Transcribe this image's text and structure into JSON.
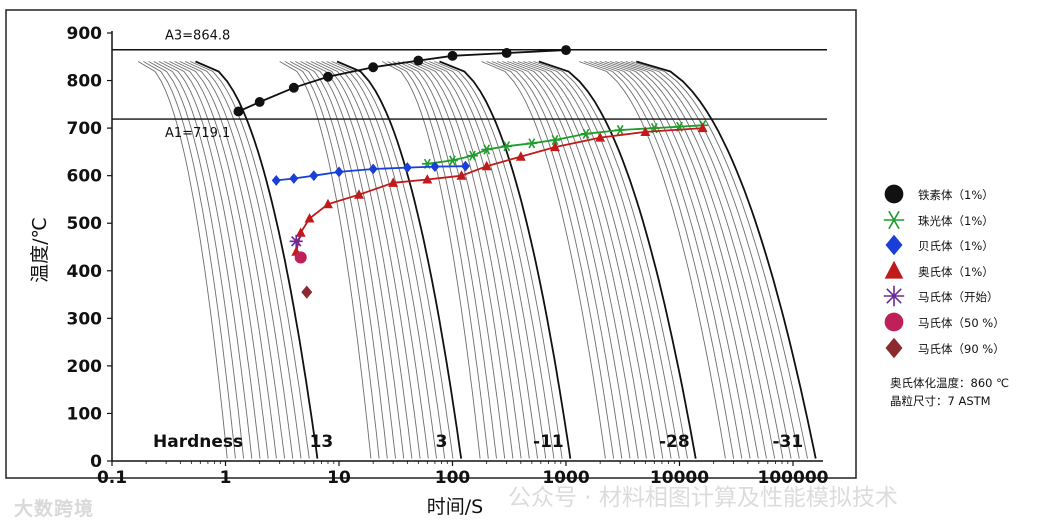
{
  "chart_data": {
    "type": "line",
    "chart_kind": "continuous-cooling-transformation diagram",
    "x_label": "时间/S",
    "y_label": "温度/℃",
    "x_scale": "log",
    "x_lim": [
      0.1,
      100000
    ],
    "y_lim": [
      0,
      900
    ],
    "x_ticks": [
      {
        "v": 0.1,
        "label": "0.1"
      },
      {
        "v": 1,
        "label": "1"
      },
      {
        "v": 10,
        "label": "10"
      },
      {
        "v": 100,
        "label": "100"
      },
      {
        "v": 1000,
        "label": "1000"
      },
      {
        "v": 10000,
        "label": "10000"
      },
      {
        "v": 100000,
        "label": "100000"
      }
    ],
    "y_ticks": [
      0,
      100,
      200,
      300,
      400,
      500,
      600,
      700,
      800,
      900
    ],
    "reference_lines": [
      {
        "name": "A3",
        "temperature": 864.8,
        "label": "A3=864.8"
      },
      {
        "name": "A1",
        "temperature": 719.1,
        "label": "A1=719.1"
      }
    ],
    "cooling_curve_groups": [
      {
        "t_start": 0.17,
        "t_end": 6.5,
        "count": 12
      },
      {
        "t_start": 3.0,
        "t_end": 120,
        "count": 12
      },
      {
        "t_start": 24,
        "t_end": 1100,
        "count": 12
      },
      {
        "t_start": 180,
        "t_end": 14000,
        "count": 12
      },
      {
        "t_start": 1300,
        "t_end": 160000,
        "count": 12
      }
    ],
    "series": [
      {
        "name": "铁素体（1%）",
        "marker": "circle",
        "color": "#111111",
        "points": [
          [
            1.3,
            735
          ],
          [
            2,
            755
          ],
          [
            4,
            785
          ],
          [
            8,
            808
          ],
          [
            20,
            828
          ],
          [
            50,
            842
          ],
          [
            100,
            852
          ],
          [
            300,
            858
          ],
          [
            1000,
            864
          ]
        ]
      },
      {
        "name": "珠光体（1%）",
        "marker": "asterisk",
        "color": "#1e9e2a",
        "points": [
          [
            60,
            625
          ],
          [
            100,
            632
          ],
          [
            150,
            642
          ],
          [
            200,
            655
          ],
          [
            300,
            662
          ],
          [
            500,
            668
          ],
          [
            800,
            675
          ],
          [
            1500,
            688
          ],
          [
            3000,
            696
          ],
          [
            6000,
            700
          ],
          [
            10000,
            703
          ],
          [
            16000,
            706
          ]
        ]
      },
      {
        "name": "贝氏体（1%）",
        "marker": "diamond",
        "color": "#1a3fd6",
        "points": [
          [
            2.8,
            590
          ],
          [
            4,
            594
          ],
          [
            6,
            600
          ],
          [
            10,
            608
          ],
          [
            20,
            614
          ],
          [
            40,
            617
          ],
          [
            70,
            619
          ],
          [
            130,
            620
          ]
        ]
      },
      {
        "name": "奥氏体（1%）",
        "marker": "triangle",
        "color": "#c01a1a",
        "points": [
          [
            4.2,
            440
          ],
          [
            4.6,
            480
          ],
          [
            5.5,
            510
          ],
          [
            8,
            540
          ],
          [
            15,
            560
          ],
          [
            30,
            585
          ],
          [
            60,
            592
          ],
          [
            120,
            600
          ],
          [
            200,
            620
          ],
          [
            400,
            640
          ],
          [
            800,
            660
          ],
          [
            2000,
            680
          ],
          [
            5000,
            692
          ],
          [
            16000,
            700
          ]
        ]
      },
      {
        "name": "马氏体（开始）",
        "marker": "star",
        "color": "#6a2a9a",
        "points": [
          [
            4.2,
            462
          ]
        ]
      },
      {
        "name": "马氏体（50 %）",
        "marker": "circle",
        "color": "#c0205a",
        "points": [
          [
            4.6,
            428
          ]
        ]
      },
      {
        "name": "马氏体（90 %）",
        "marker": "diamond",
        "color": "#8a2a30",
        "points": [
          [
            5.2,
            355
          ]
        ]
      }
    ],
    "hardness_label": "Hardness",
    "hardness_values": [
      {
        "t": 7,
        "label": "13"
      },
      {
        "t": 80,
        "label": "3"
      },
      {
        "t": 700,
        "label": "-11"
      },
      {
        "t": 9000,
        "label": "-28"
      },
      {
        "t": 90000,
        "label": "-31"
      }
    ]
  },
  "legend": [
    {
      "label": "铁素体（1%）",
      "marker": "circle",
      "color": "#111111"
    },
    {
      "label": "珠光体（1%）",
      "marker": "asterisk",
      "color": "#1e9e2a"
    },
    {
      "label": "贝氏体（1%）",
      "marker": "diamond",
      "color": "#1a3fd6"
    },
    {
      "label": "奥氏体（1%）",
      "marker": "triangle",
      "color": "#c01a1a"
    },
    {
      "label": "马氏体（开始）",
      "marker": "star",
      "color": "#6a2a9a"
    },
    {
      "label": "马氏体（50 %）",
      "marker": "circle",
      "color": "#c0205a"
    },
    {
      "label": "马氏体（90 %）",
      "marker": "diamond",
      "color": "#8a2a30"
    }
  ],
  "notes": {
    "austenitizing": "奥氏体化温度：860 ℃",
    "grain_size": "晶粒尺寸：7 ASTM"
  },
  "watermarks": {
    "left": "大数跨境",
    "right": "公众号 · 材料相图计算及性能模拟技术"
  }
}
